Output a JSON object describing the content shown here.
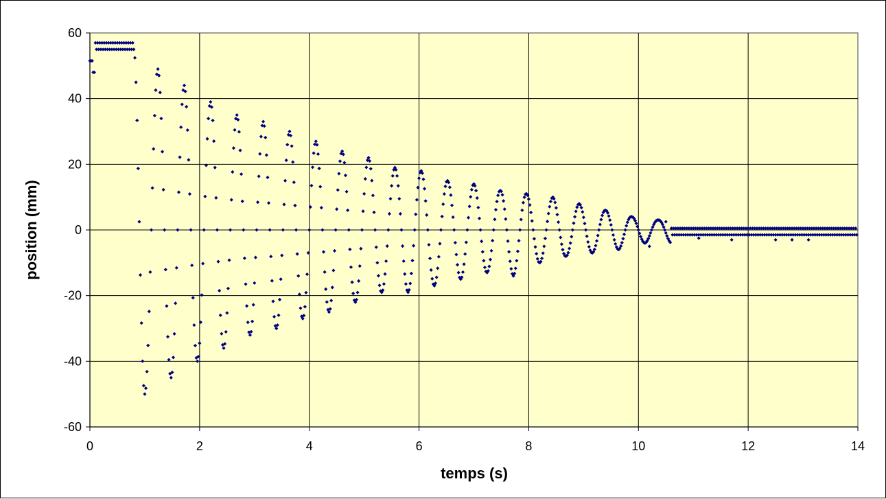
{
  "chart_data": {
    "type": "scatter",
    "title": "",
    "xlabel": "temps (s)",
    "ylabel": "position (mm)",
    "xlim": [
      0,
      14
    ],
    "ylim": [
      -60,
      60
    ],
    "x_ticks": [
      0,
      2,
      4,
      6,
      8,
      10,
      12,
      14
    ],
    "y_ticks": [
      -60,
      -40,
      -20,
      0,
      20,
      40,
      60
    ],
    "x_tick_labels": [
      "0",
      "2",
      "4",
      "6",
      "8",
      "10",
      "12",
      "14"
    ],
    "y_tick_labels": [
      "-60",
      "-40",
      "-20",
      "0",
      "20",
      "40",
      "60"
    ],
    "grid": true,
    "legend": "none",
    "colors": {
      "plot_background": "#FFFFCC",
      "grid": "#000000",
      "marker": "#000080"
    },
    "series": [
      {
        "marker": "diamond",
        "sample_interval_s": 0.02,
        "segments": [
          {
            "t_start": 0.0,
            "t_end": 0.06,
            "kind": "constant",
            "value": 51.5
          },
          {
            "t_start": 0.06,
            "t_end": 0.1,
            "kind": "constant",
            "value": 48.0
          },
          {
            "t_start": 0.1,
            "t_end": 0.8,
            "kind": "alternating",
            "values": [
              57.0,
              55.0
            ]
          },
          {
            "t_start": 0.8,
            "t_end": 10.6,
            "kind": "damped_oscillation",
            "period_s": 0.48,
            "first_minimum_time_s": 1.0,
            "turning_points": [
              {
                "t": 1.0,
                "y": -50
              },
              {
                "t": 1.24,
                "y": 49
              },
              {
                "t": 1.48,
                "y": -45
              },
              {
                "t": 1.72,
                "y": 44
              },
              {
                "t": 1.96,
                "y": -40
              },
              {
                "t": 2.2,
                "y": 39
              },
              {
                "t": 2.44,
                "y": -36
              },
              {
                "t": 2.68,
                "y": 35
              },
              {
                "t": 2.92,
                "y": -32
              },
              {
                "t": 3.16,
                "y": 33
              },
              {
                "t": 3.4,
                "y": -30
              },
              {
                "t": 3.64,
                "y": 30
              },
              {
                "t": 3.88,
                "y": -27
              },
              {
                "t": 4.12,
                "y": 27
              },
              {
                "t": 4.36,
                "y": -25
              },
              {
                "t": 4.6,
                "y": 24
              },
              {
                "t": 4.84,
                "y": -22
              },
              {
                "t": 5.08,
                "y": 22
              },
              {
                "t": 5.32,
                "y": -19
              },
              {
                "t": 5.56,
                "y": 19
              },
              {
                "t": 5.8,
                "y": -19
              },
              {
                "t": 6.04,
                "y": 18
              },
              {
                "t": 6.28,
                "y": -17
              },
              {
                "t": 6.52,
                "y": 15
              },
              {
                "t": 6.76,
                "y": -15
              },
              {
                "t": 7.0,
                "y": 14
              },
              {
                "t": 7.24,
                "y": -13
              },
              {
                "t": 7.48,
                "y": 12
              },
              {
                "t": 7.72,
                "y": -14
              },
              {
                "t": 7.96,
                "y": 11
              },
              {
                "t": 8.2,
                "y": -10
              },
              {
                "t": 8.44,
                "y": 10
              },
              {
                "t": 8.68,
                "y": -8
              },
              {
                "t": 8.92,
                "y": 8
              },
              {
                "t": 9.16,
                "y": -7
              },
              {
                "t": 9.4,
                "y": 6
              },
              {
                "t": 9.64,
                "y": -6
              },
              {
                "t": 9.88,
                "y": 4
              },
              {
                "t": 10.12,
                "y": -4
              },
              {
                "t": 10.36,
                "y": 3
              },
              {
                "t": 10.6,
                "y": -4
              }
            ]
          },
          {
            "t_start": 10.6,
            "t_end": 14.0,
            "kind": "alternating",
            "values": [
              0.5,
              -1.5
            ]
          }
        ],
        "outlier_points": [
          {
            "x": 10.2,
            "y": -5
          },
          {
            "x": 10.5,
            "y": 2.5
          },
          {
            "x": 10.8,
            "y": 0.5
          },
          {
            "x": 11.7,
            "y": -3
          },
          {
            "x": 12.5,
            "y": -3
          },
          {
            "x": 12.8,
            "y": -3
          },
          {
            "x": 13.1,
            "y": -3
          },
          {
            "x": 11.1,
            "y": -2.5
          }
        ]
      }
    ]
  }
}
